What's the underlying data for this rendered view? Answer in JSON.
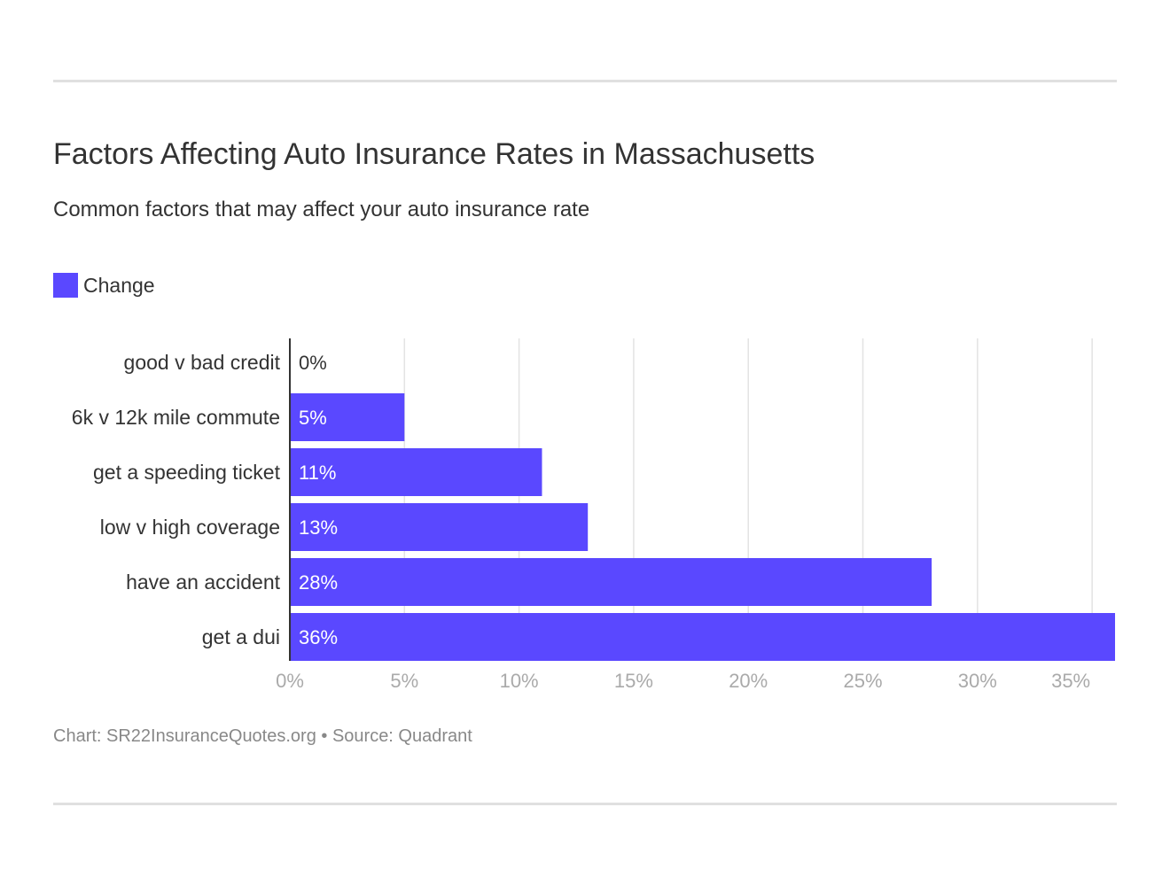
{
  "chart_data": {
    "type": "bar",
    "orientation": "horizontal",
    "title": "Factors Affecting Auto Insurance Rates in Massachusetts",
    "subtitle": "Common factors that may affect your auto insurance rate",
    "categories": [
      "good v bad credit",
      "6k v 12k mile commute",
      "get a speeding ticket",
      "low v high coverage",
      "have an accident",
      "get a dui"
    ],
    "series": [
      {
        "name": "Change",
        "values": [
          0,
          5,
          11,
          13,
          28,
          36
        ],
        "color": "#5a48ff"
      }
    ],
    "value_labels": [
      "0%",
      "5%",
      "11%",
      "13%",
      "28%",
      "36%"
    ],
    "xlim": [
      0,
      36
    ],
    "xticks": [
      0,
      5,
      10,
      15,
      20,
      25,
      30,
      35
    ],
    "xtick_labels": [
      "0%",
      "5%",
      "10%",
      "15%",
      "20%",
      "25%",
      "30%",
      "35%"
    ],
    "grid": true,
    "legend": "top-left",
    "footer": "Chart: SR22InsuranceQuotes.org • Source: Quadrant"
  }
}
